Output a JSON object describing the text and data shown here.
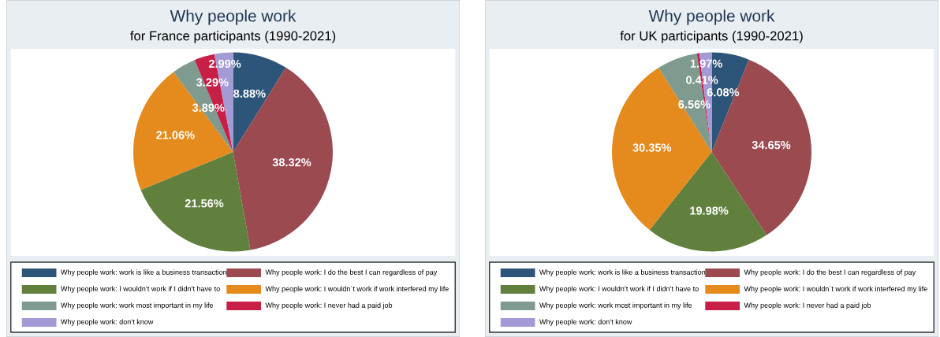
{
  "chart_data": [
    {
      "type": "pie",
      "title": "Why people work",
      "subtitle": "for France participants (1990-2021)",
      "legend": "bottom",
      "categories": [
        "Why people work: work is like a business transaction",
        "Why people work: I do the best I can regardless of pay",
        "Why people work: I wouldn’t work if I didn’t have to",
        "Why people work: I wouldn´t work if work interfered my life",
        "Why people work: work most important in my life",
        "Why people work: I never had a paid job",
        "Why people work: don’t know"
      ],
      "values": [
        8.88,
        38.32,
        21.56,
        21.06,
        3.89,
        3.29,
        2.99
      ],
      "value_labels": [
        "8.88%",
        "38.32%",
        "21.56%",
        "21.06%",
        "3.89%",
        "3.29%",
        "2.99%"
      ],
      "colors": [
        "#2d5479",
        "#9b4a50",
        "#61803e",
        "#e58a1c",
        "#7f9a8e",
        "#c71f45",
        "#a49bd6"
      ]
    },
    {
      "type": "pie",
      "title": "Why people work",
      "subtitle": "for UK participants (1990-2021)",
      "legend": "bottom",
      "categories": [
        "Why people work: work is like a business transaction",
        "Why people work: I do the best I can regardless of pay",
        "Why people work: I wouldn’t work if I didn’t have to",
        "Why people work: I wouldn´t work if work interfered my life",
        "Why people work: work most important in my life",
        "Why people work: I never had a paid job",
        "Why people work: don’t know"
      ],
      "values": [
        6.08,
        34.65,
        19.98,
        30.35,
        6.56,
        0.41,
        1.97
      ],
      "value_labels": [
        "6.08%",
        "34.65%",
        "19.98%",
        "30.35%",
        "6.56%",
        "0.41%",
        "1.97%"
      ],
      "colors": [
        "#2d5479",
        "#9b4a50",
        "#61803e",
        "#e58a1c",
        "#7f9a8e",
        "#c71f45",
        "#a49bd6"
      ]
    }
  ]
}
